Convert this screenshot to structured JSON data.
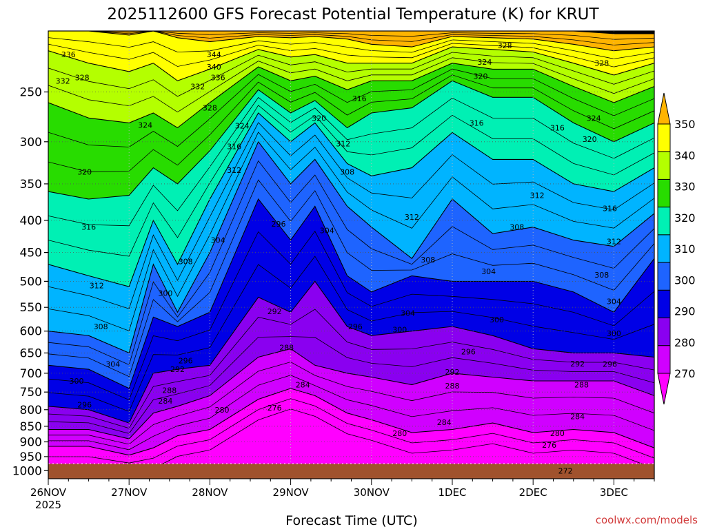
{
  "chart_data": {
    "type": "heatmap",
    "title": "2025112600 GFS Forecast Potential Temperature (K) for KRUT",
    "xlabel": "Forecast Time (UTC)",
    "ylabel": "",
    "x_ticks": [
      "26NOV",
      "27NOV",
      "28NOV",
      "29NOV",
      "30NOV",
      "1DEC",
      "2DEC",
      "3DEC"
    ],
    "x_year": "2025",
    "y_ticks": [
      250,
      300,
      350,
      400,
      450,
      500,
      550,
      600,
      650,
      700,
      750,
      800,
      850,
      900,
      950,
      1000
    ],
    "y_scale": "log",
    "ylim": [
      200,
      1030
    ],
    "xlim_days": [
      0,
      7.5
    ],
    "colorbar": {
      "levels": [
        270,
        280,
        290,
        300,
        310,
        320,
        330,
        340,
        350
      ],
      "colors": [
        "#ff00ff",
        "#d000ff",
        "#8a00f0",
        "#0000e6",
        "#1e64ff",
        "#00b4ff",
        "#00f0b4",
        "#28dc00",
        "#b4ff00",
        "#ffff00",
        "#ffb400"
      ],
      "extend": "both"
    },
    "profile_columns": [
      {
        "day": 0.0,
        "isotherm_pressures": [
          915,
          860,
          790,
          680,
          600,
          470,
          360,
          260,
          215,
          200,
          200
        ]
      },
      {
        "day": 0.5,
        "isotherm_pressures": [
          915,
          860,
          800,
          690,
          610,
          490,
          370,
          275,
          225,
          200,
          200
        ]
      },
      {
        "day": 1.0,
        "isotherm_pressures": [
          945,
          890,
          840,
          740,
          650,
          510,
          365,
          280,
          232,
          203,
          200
        ]
      },
      {
        "day": 1.3,
        "isotherm_pressures": [
          920,
          810,
          700,
          570,
          470,
          400,
          330,
          270,
          225,
          200,
          200
        ]
      },
      {
        "day": 1.6,
        "isotherm_pressures": [
          880,
          790,
          690,
          590,
          560,
          470,
          350,
          285,
          240,
          205,
          200
        ]
      },
      {
        "day": 2.0,
        "isotherm_pressures": [
          860,
          760,
          680,
          560,
          450,
          370,
          310,
          260,
          230,
          208,
          200
        ]
      },
      {
        "day": 2.6,
        "isotherm_pressures": [
          770,
          660,
          530,
          370,
          300,
          270,
          248,
          228,
          214,
          204,
          200
        ]
      },
      {
        "day": 3.0,
        "isotherm_pressures": [
          740,
          640,
          560,
          430,
          350,
          300,
          270,
          240,
          220,
          205,
          200
        ]
      },
      {
        "day": 3.3,
        "isotherm_pressures": [
          760,
          680,
          500,
          380,
          320,
          280,
          258,
          236,
          218,
          204,
          200
        ]
      },
      {
        "day": 3.7,
        "isotherm_pressures": [
          810,
          700,
          590,
          490,
          380,
          325,
          285,
          248,
          225,
          206,
          200
        ]
      },
      {
        "day": 4.0,
        "isotherm_pressures": [
          830,
          710,
          610,
          520,
          410,
          340,
          270,
          240,
          225,
          210,
          200
        ]
      },
      {
        "day": 4.5,
        "isotherm_pressures": [
          870,
          730,
          600,
          490,
          460,
          330,
          265,
          240,
          225,
          212,
          200
        ]
      },
      {
        "day": 5.0,
        "isotherm_pressures": [
          860,
          700,
          590,
          500,
          370,
          290,
          240,
          225,
          212,
          204,
          200
        ]
      },
      {
        "day": 5.5,
        "isotherm_pressures": [
          840,
          710,
          610,
          500,
          420,
          320,
          255,
          230,
          214,
          205,
          200
        ]
      },
      {
        "day": 6.0,
        "isotherm_pressures": [
          870,
          720,
          640,
          500,
          410,
          320,
          255,
          230,
          216,
          206,
          200
        ]
      },
      {
        "day": 6.5,
        "isotherm_pressures": [
          860,
          720,
          650,
          520,
          430,
          350,
          280,
          245,
          225,
          210,
          200
        ]
      },
      {
        "day": 7.0,
        "isotherm_pressures": [
          870,
          720,
          650,
          560,
          440,
          360,
          300,
          260,
          235,
          215,
          202
        ]
      },
      {
        "day": 7.5,
        "isotherm_pressures": [
          920,
          760,
          660,
          460,
          390,
          330,
          280,
          245,
          225,
          212,
          202
        ]
      }
    ],
    "contour_labels": [
      {
        "text": "336",
        "day": 0.25,
        "p": 218
      },
      {
        "text": "332",
        "day": 0.18,
        "p": 240
      },
      {
        "text": "328",
        "day": 0.42,
        "p": 237
      },
      {
        "text": "344",
        "day": 2.05,
        "p": 218
      },
      {
        "text": "340",
        "day": 2.05,
        "p": 228
      },
      {
        "text": "336",
        "day": 2.1,
        "p": 237
      },
      {
        "text": "332",
        "day": 1.85,
        "p": 245
      },
      {
        "text": "328",
        "day": 2.0,
        "p": 265
      },
      {
        "text": "324",
        "day": 1.2,
        "p": 282
      },
      {
        "text": "324",
        "day": 2.4,
        "p": 283
      },
      {
        "text": "320",
        "day": 3.35,
        "p": 275
      },
      {
        "text": "316",
        "day": 2.3,
        "p": 305
      },
      {
        "text": "312",
        "day": 2.3,
        "p": 333
      },
      {
        "text": "312",
        "day": 3.65,
        "p": 302
      },
      {
        "text": "308",
        "day": 3.7,
        "p": 335
      },
      {
        "text": "316",
        "day": 3.85,
        "p": 256
      },
      {
        "text": "316",
        "day": 5.3,
        "p": 280
      },
      {
        "text": "316",
        "day": 6.3,
        "p": 285
      },
      {
        "text": "328",
        "day": 5.65,
        "p": 211
      },
      {
        "text": "324",
        "day": 5.4,
        "p": 224
      },
      {
        "text": "320",
        "day": 5.35,
        "p": 236
      },
      {
        "text": "328",
        "day": 6.85,
        "p": 225
      },
      {
        "text": "324",
        "day": 6.75,
        "p": 275
      },
      {
        "text": "320",
        "day": 6.7,
        "p": 297
      },
      {
        "text": "316",
        "day": 6.95,
        "p": 383
      },
      {
        "text": "312",
        "day": 7.0,
        "p": 432
      },
      {
        "text": "312",
        "day": 6.05,
        "p": 365
      },
      {
        "text": "308",
        "day": 5.8,
        "p": 410
      },
      {
        "text": "304",
        "day": 5.45,
        "p": 482
      },
      {
        "text": "300",
        "day": 5.55,
        "p": 575
      },
      {
        "text": "312",
        "day": 4.5,
        "p": 395
      },
      {
        "text": "308",
        "day": 4.7,
        "p": 462
      },
      {
        "text": "304",
        "day": 4.45,
        "p": 562
      },
      {
        "text": "300",
        "day": 4.35,
        "p": 597
      },
      {
        "text": "296",
        "day": 3.8,
        "p": 590
      },
      {
        "text": "296",
        "day": 5.2,
        "p": 647
      },
      {
        "text": "292",
        "day": 5.0,
        "p": 697
      },
      {
        "text": "288",
        "day": 5.0,
        "p": 733
      },
      {
        "text": "284",
        "day": 4.9,
        "p": 838
      },
      {
        "text": "280",
        "day": 4.35,
        "p": 872
      },
      {
        "text": "276",
        "day": 2.8,
        "p": 794
      },
      {
        "text": "280",
        "day": 2.15,
        "p": 800
      },
      {
        "text": "284",
        "day": 3.15,
        "p": 730
      },
      {
        "text": "288",
        "day": 2.95,
        "p": 637
      },
      {
        "text": "292",
        "day": 2.8,
        "p": 558
      },
      {
        "text": "296",
        "day": 2.85,
        "p": 405
      },
      {
        "text": "304",
        "day": 3.45,
        "p": 415
      },
      {
        "text": "304",
        "day": 2.1,
        "p": 430
      },
      {
        "text": "308",
        "day": 1.7,
        "p": 465
      },
      {
        "text": "300",
        "day": 1.45,
        "p": 522
      },
      {
        "text": "296",
        "day": 1.7,
        "p": 668
      },
      {
        "text": "292",
        "day": 1.6,
        "p": 690
      },
      {
        "text": "288",
        "day": 1.5,
        "p": 745
      },
      {
        "text": "284",
        "day": 1.45,
        "p": 775
      },
      {
        "text": "320",
        "day": 0.45,
        "p": 335
      },
      {
        "text": "316",
        "day": 0.5,
        "p": 410
      },
      {
        "text": "312",
        "day": 0.6,
        "p": 508
      },
      {
        "text": "308",
        "day": 0.65,
        "p": 590
      },
      {
        "text": "304",
        "day": 0.8,
        "p": 677
      },
      {
        "text": "300",
        "day": 0.35,
        "p": 720
      },
      {
        "text": "296",
        "day": 0.45,
        "p": 785
      },
      {
        "text": "292",
        "day": 6.55,
        "p": 676
      },
      {
        "text": "296",
        "day": 6.95,
        "p": 677
      },
      {
        "text": "300",
        "day": 7.0,
        "p": 605
      },
      {
        "text": "304",
        "day": 7.0,
        "p": 538
      },
      {
        "text": "308",
        "day": 6.85,
        "p": 488
      },
      {
        "text": "288",
        "day": 6.6,
        "p": 730
      },
      {
        "text": "284",
        "day": 6.55,
        "p": 820
      },
      {
        "text": "280",
        "day": 6.3,
        "p": 872
      },
      {
        "text": "276",
        "day": 6.2,
        "p": 910
      },
      {
        "text": "272",
        "day": 6.4,
        "p": 1000
      }
    ]
  },
  "watermark": "coolwx.com/models"
}
